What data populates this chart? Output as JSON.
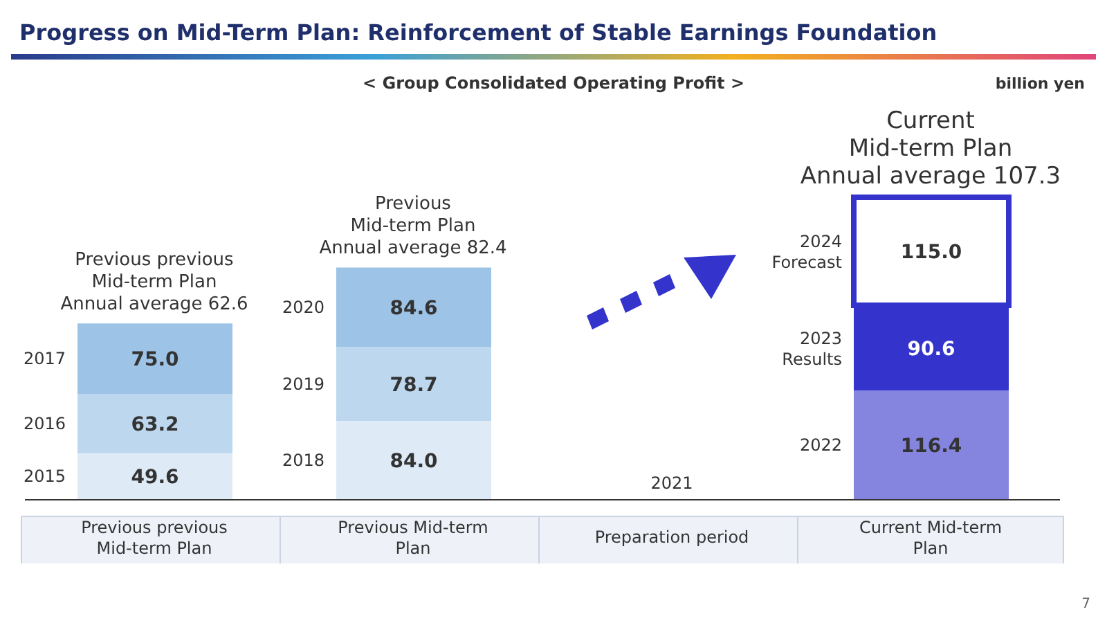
{
  "chart_data": {
    "type": "bar",
    "title": "Progress on Mid-Term Plan: Reinforcement of Stable Earnings Foundation",
    "subtitle": "< Group Consolidated Operating Profit >",
    "categories": [
      "Previous previous Mid-term Plan",
      "Previous Mid-term Plan",
      "Preparation period",
      "Current Mid-term Plan"
    ],
    "stacked": true,
    "legend": false,
    "grid": false,
    "series": [
      {
        "values": [
          49.6,
          84.0,
          null,
          116.4
        ],
        "value_labels": [
          "49.6",
          "84.0",
          null,
          "116.4"
        ],
        "colors": [
          "#deebf7",
          "#deebf7",
          "#deebf7",
          "#8585e0"
        ]
      },
      {
        "values": [
          63.2,
          78.7,
          null,
          90.6
        ],
        "value_labels": [
          "63.2",
          "78.7",
          null,
          "90.6"
        ],
        "colors": [
          "#bdd7ee",
          "#bdd7ee",
          "#bdd7ee",
          "#3434cc"
        ]
      },
      {
        "values": [
          75.0,
          84.6,
          null,
          115.0
        ],
        "value_labels": [
          "75.0",
          "84.6",
          null,
          "115.0"
        ],
        "colors": [
          "#9dc3e6",
          "#9dc3e6",
          "#9dc3e6",
          "#ffffff"
        ]
      }
    ],
    "annotations": [
      "billion yen",
      "7",
      {
        "text": "Previous previous\nMid-term Plan\nAnnual average 62.6",
        "x": "Previous previous Mid-term Plan",
        "y": 187.8
      },
      {
        "text": "Previous\nMid-term Plan\nAnnual average 82.4",
        "x": "Previous Mid-term Plan",
        "y": 247.3
      },
      {
        "text": "Current\nMid-term Plan\nAnnual average 107.3",
        "x": "Current Mid-term Plan",
        "y": 322.0
      },
      "2015",
      "2016",
      "2017",
      "2018",
      "2019",
      "2020",
      "2021",
      "2022",
      "2023\nResults",
      "2024\nForecast"
    ]
  }
}
